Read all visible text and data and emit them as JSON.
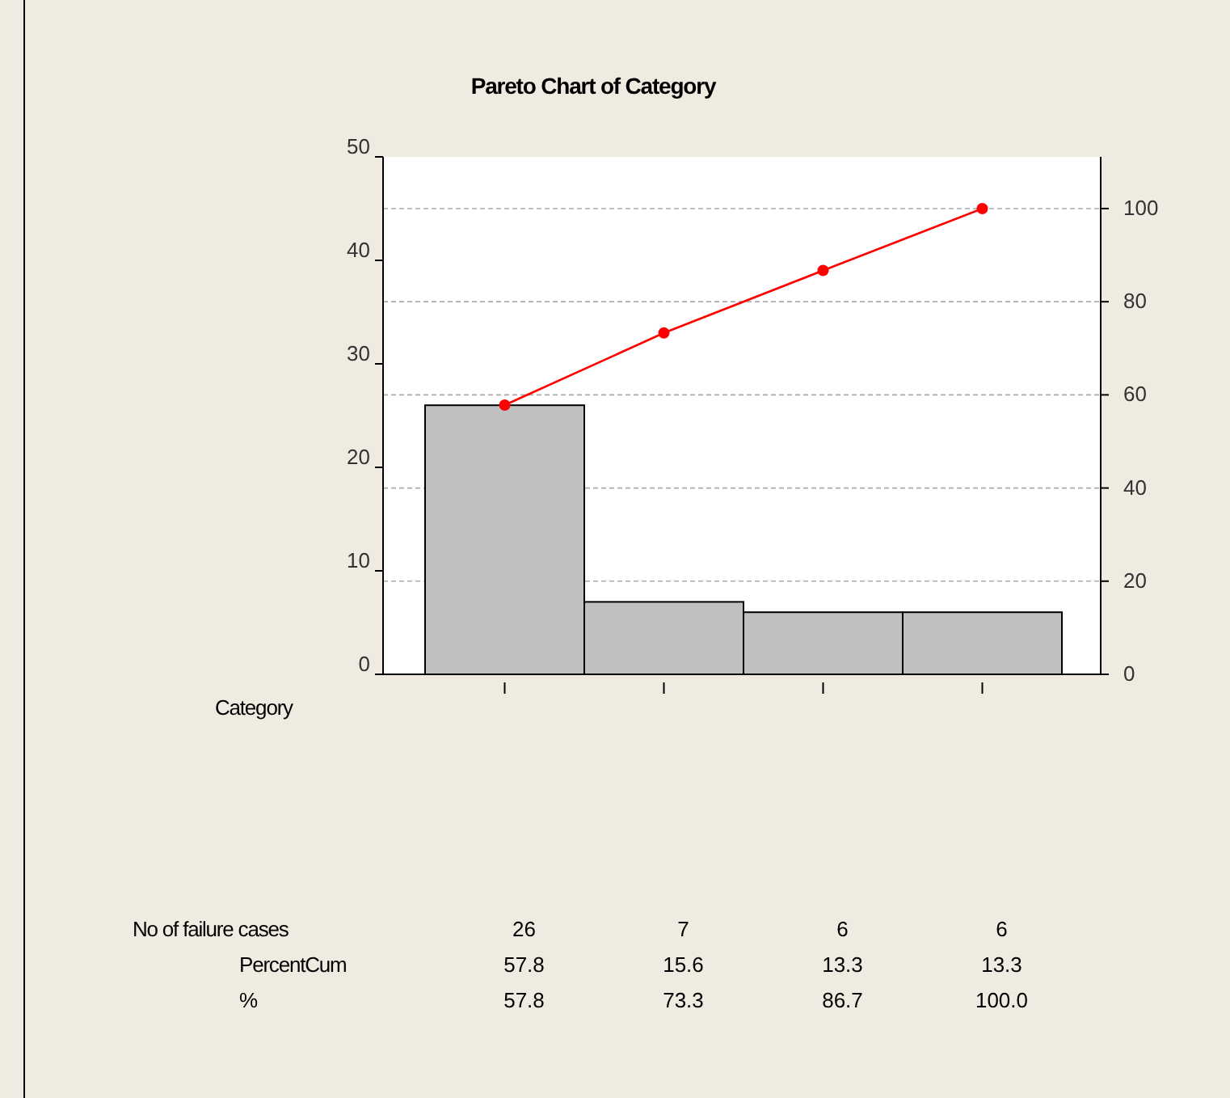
{
  "chart_data": {
    "type": "bar",
    "title": "Pareto Chart of Category",
    "xlabel": "Category",
    "categories": [
      null,
      null,
      null,
      null
    ],
    "series": [
      {
        "color": "#c0c0c0",
        "values": [
          26,
          7,
          6,
          6
        ],
        "value_labels": [
          "26",
          "7",
          "6",
          "6"
        ]
      },
      {
        "type": "line",
        "axis": "y2",
        "color": "#ff0000",
        "values": [
          57.8,
          73.3,
          86.7,
          100
        ],
        "value_labels": [
          "57.8",
          "73.3",
          "86.7",
          "100.0"
        ],
        "marker": "circle",
        "line_style": "solid"
      }
    ],
    "annotations": [
      "No of failure cases",
      "PercentCum",
      "%",
      "57.8",
      "15.6",
      "13.3",
      "13.3"
    ],
    "ylim": [
      0,
      50
    ],
    "yticks": [
      0,
      10,
      20,
      30,
      40,
      50
    ],
    "y2lim": [
      0,
      111.1
    ],
    "y2ticks": [
      0,
      20,
      40,
      60,
      80,
      100
    ],
    "grid": "y2"
  }
}
